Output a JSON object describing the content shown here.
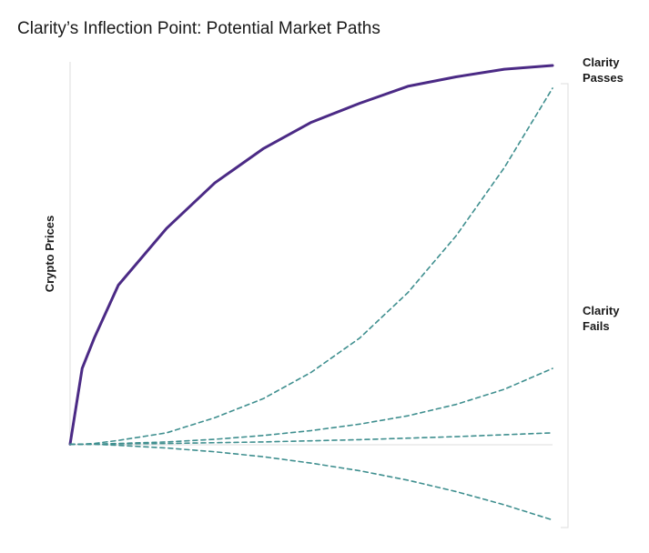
{
  "chart_data": {
    "type": "line",
    "title": "Clarity’s Inflection Point: Potential Market Paths",
    "y_label": "Crypto Prices",
    "annotations": [
      {
        "lines": [
          "Clarity",
          "Passes"
        ]
      },
      {
        "lines": [
          "Clarity",
          "Fails"
        ]
      }
    ],
    "x": [
      0,
      0.25,
      0.5,
      1,
      2,
      3,
      4,
      5,
      6,
      7,
      8,
      9,
      10
    ],
    "xlim": [
      0,
      10
    ],
    "ylim": [
      -22,
      100
    ],
    "series": [
      {
        "color": "#4b2a85",
        "dashed": false,
        "values": [
          0,
          20,
          28,
          42,
          57,
          69,
          78,
          85,
          90,
          94.5,
          97,
          99,
          100
        ]
      },
      {
        "color": "#3f8f8f",
        "dashed": true,
        "values": [
          0,
          0,
          0.2,
          1,
          3,
          7,
          12,
          19,
          28,
          40,
          55,
          73,
          94
        ]
      },
      {
        "color": "#3f8f8f",
        "dashed": true,
        "values": [
          0,
          0,
          0,
          0.2,
          0.6,
          1.3,
          2.3,
          3.6,
          5.3,
          7.5,
          10.5,
          14.5,
          20
        ]
      },
      {
        "color": "#3f8f8f",
        "dashed": true,
        "values": [
          0,
          0,
          0,
          0.1,
          0.2,
          0.4,
          0.6,
          0.9,
          1.2,
          1.6,
          2,
          2.5,
          3
        ]
      },
      {
        "color": "#3f8f8f",
        "dashed": true,
        "values": [
          0,
          0,
          0,
          -0.3,
          -1,
          -2,
          -3.3,
          -5,
          -7,
          -9.5,
          -12.5,
          -16,
          -20
        ]
      }
    ]
  }
}
